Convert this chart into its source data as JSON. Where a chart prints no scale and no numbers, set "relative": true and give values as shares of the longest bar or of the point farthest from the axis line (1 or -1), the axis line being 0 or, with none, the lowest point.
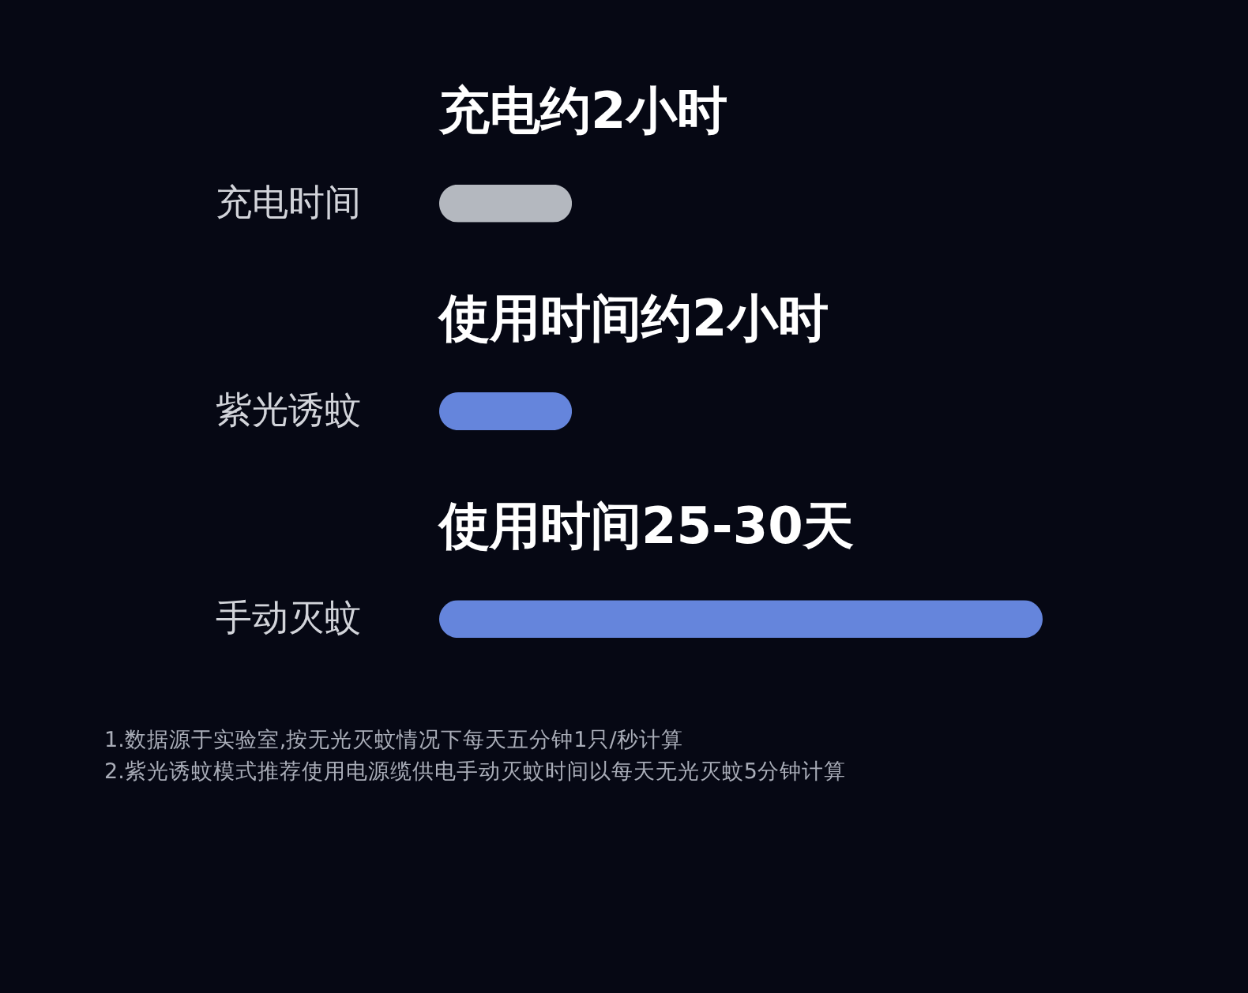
{
  "chart_data": {
    "type": "bar",
    "orientation": "horizontal",
    "relative": true,
    "categories": [
      "充电时间",
      "紫光诱蚊",
      "手动灭蚊"
    ],
    "values": [
      0.22,
      0.22,
      1
    ],
    "colors": [
      "#b4b8bf",
      "#6585dc",
      "#6585dc"
    ],
    "annotations": [
      "充电约2小时",
      "使用时间约2小时",
      "使用时间25-30天",
      "1.数据源于实验室,按无光灭蚊情况下每天五分钟1只/秒计算",
      "2.紫光诱蚊模式推荐使用电源缆供电手动灭蚊时间以每天无光灭蚊5分钟计算"
    ]
  }
}
